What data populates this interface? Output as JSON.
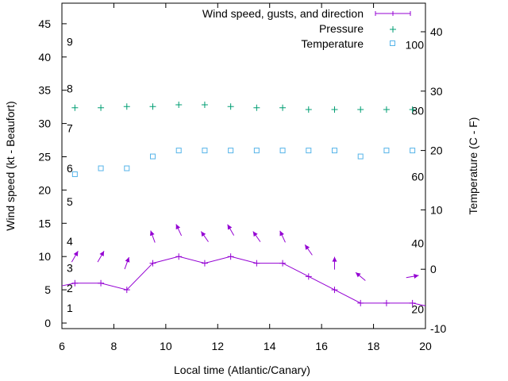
{
  "chart_data": {
    "type": "line",
    "xlabel": "Local time (Atlantic/Canary)",
    "ylabel": "Wind speed (kt - Beaufort)",
    "y2label": "Temperature (C - F)",
    "xlim": [
      6,
      20
    ],
    "ylim": [
      0,
      48
    ],
    "y2lim": [
      -10,
      44.8
    ],
    "xticks": [
      6,
      8,
      10,
      12,
      14,
      16,
      18,
      20
    ],
    "yticks": [
      0,
      5,
      10,
      15,
      20,
      25,
      30,
      35,
      40,
      45
    ],
    "y2ticks": [
      -10,
      0,
      10,
      20,
      30,
      40
    ],
    "x": [
      6.5,
      7.5,
      8.5,
      9.5,
      10.5,
      11.5,
      12.5,
      13.5,
      14.5,
      15.5,
      16.5,
      17.5,
      18.5,
      19.5
    ],
    "series": [
      {
        "name": "Wind speed, gusts, and direction",
        "axis": "y",
        "color": "#9400d3",
        "values": [
          6,
          6,
          5,
          9,
          10,
          9,
          10,
          9,
          9,
          7,
          5,
          3,
          3,
          3
        ],
        "edge_values": [
          5.6,
          2.6
        ],
        "gusts": [
          10,
          10,
          9,
          13,
          14,
          13,
          14,
          13,
          13,
          11,
          9,
          7,
          null,
          7
        ],
        "arrow_direction_deg": [
          30,
          30,
          20,
          -20,
          -25,
          -35,
          -30,
          -35,
          -25,
          -35,
          0,
          -50,
          null,
          80
        ]
      },
      {
        "name": "Pressure",
        "axis": "y2",
        "color": "#009e73",
        "values": [
          27.2,
          27.2,
          27.4,
          27.4,
          27.7,
          27.7,
          27.4,
          27.2,
          27.2,
          26.9,
          26.9,
          26.9,
          26.9,
          26.9
        ]
      },
      {
        "name": "Temperature",
        "axis": "y2",
        "color": "#56b4e9",
        "values": [
          16,
          17,
          17,
          19,
          20,
          20,
          20,
          20,
          20,
          20,
          20,
          19,
          20,
          20
        ]
      }
    ],
    "beaufort_labels": [
      {
        "text": "1",
        "kt": 1.2
      },
      {
        "text": "2",
        "kt": 4.2
      },
      {
        "text": "3",
        "kt": 7.2
      },
      {
        "text": "4",
        "kt": 11.2
      },
      {
        "text": "5",
        "kt": 17.2
      },
      {
        "text": "6",
        "kt": 22.2
      },
      {
        "text": "7",
        "kt": 28.2
      },
      {
        "text": "8",
        "kt": 34.2
      },
      {
        "text": "9",
        "kt": 41.2
      }
    ],
    "fahrenheit_labels": [
      {
        "text": "20",
        "c": -6.7
      },
      {
        "text": "40",
        "c": 4.4
      },
      {
        "text": "60",
        "c": 15.6
      },
      {
        "text": "80",
        "c": 26.7
      },
      {
        "text": "100",
        "c": 37.8
      }
    ],
    "legend_position": "top-right"
  }
}
